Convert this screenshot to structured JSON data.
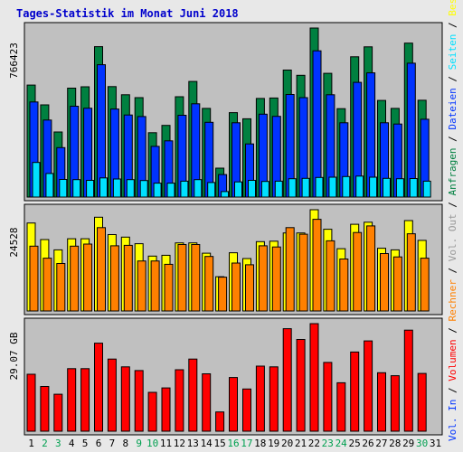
{
  "chart_data": {
    "type": "bar",
    "title": "Tages-Statistik im Monat Juni 2018",
    "categories": [
      "1",
      "2",
      "3",
      "4",
      "5",
      "6",
      "7",
      "8",
      "9",
      "10",
      "11",
      "12",
      "13",
      "14",
      "15",
      "16",
      "17",
      "18",
      "19",
      "20",
      "21",
      "22",
      "23",
      "24",
      "25",
      "26",
      "27",
      "28",
      "29",
      "30",
      "31"
    ],
    "weekend_categories": [
      "2",
      "3",
      "9",
      "10",
      "16",
      "17",
      "23",
      "24",
      "30"
    ],
    "colors": {
      "anfragen": "#008040",
      "dateien": "#0033ff",
      "seiten": "#00e0ff",
      "besuche": "#ffff00",
      "rechner": "#ff8000",
      "volumen": "#ff0000",
      "out": "#999999",
      "weekday_label": "#000000",
      "weekend_label": "#00a050"
    },
    "panels": [
      {
        "id": "requests",
        "max_label": "766423",
        "ymax": 766423,
        "series": [
          {
            "key": "anfragen",
            "values": [
              508000,
              418000,
              295000,
              494000,
              500000,
              682000,
              501000,
              464000,
              451000,
              292000,
              325000,
              455000,
              524000,
              402000,
              131000,
              383000,
              355000,
              447000,
              449000,
              576000,
              552000,
              766423,
              561000,
              401000,
              636000,
              681000,
              438000,
              402000,
              698000,
              439000,
              0
            ]
          },
          {
            "key": "dateien",
            "values": [
              431000,
              349000,
              224000,
              412000,
              403000,
              600000,
              399000,
              372000,
              365000,
              230000,
              255000,
              371000,
              423000,
              339000,
              102000,
              337000,
              241000,
              376000,
              366000,
              465000,
              451000,
              663000,
              464000,
              337000,
              520000,
              563000,
              337000,
              331000,
              607000,
              353000,
              0
            ]
          },
          {
            "key": "seiten",
            "values": [
              157000,
              107000,
              80000,
              79000,
              76000,
              87000,
              82000,
              79000,
              75000,
              63000,
              63000,
              72000,
              79000,
              66000,
              25000,
              69000,
              76000,
              71000,
              72000,
              83000,
              85000,
              89000,
              90000,
              93000,
              95000,
              90000,
              85000,
              83000,
              84000,
              72000,
              0
            ]
          }
        ],
        "side_labels": [
          {
            "key": "anfragen",
            "text": "Anfragen"
          },
          {
            "key": "dateien",
            "text": "Dateien"
          },
          {
            "key": "seiten",
            "text": "Seiten"
          },
          {
            "key": "besuche",
            "text": "Besuche"
          }
        ]
      },
      {
        "id": "visits",
        "max_label": "24528",
        "ymax": 24528,
        "series": [
          {
            "key": "besuche",
            "values": [
              21300,
              17300,
              14800,
              17500,
              17500,
              22700,
              18500,
              17900,
              16300,
              13300,
              13500,
              16500,
              16500,
              14000,
              8300,
              14100,
              12700,
              16800,
              16900,
              18900,
              18900,
              24528,
              19800,
              15100,
              21000,
              21500,
              15200,
              14800,
              21900,
              17100,
              0
            ]
          },
          {
            "key": "rechner",
            "values": [
              15700,
              12800,
              11500,
              15700,
              16200,
              20200,
              15800,
              15900,
              12100,
              12100,
              11300,
              16100,
              16100,
              13200,
              8200,
              11600,
              11200,
              15800,
              15500,
              20200,
              18600,
              22200,
              17000,
              12600,
              19000,
              20600,
              13900,
              13100,
              18700,
              12800,
              0
            ]
          }
        ],
        "side_labels": [
          {
            "key": "rechner",
            "text": "Rechner"
          },
          {
            "key": "out",
            "text": "Vol. Out"
          }
        ]
      },
      {
        "id": "volume",
        "max_label": "29.07 GB",
        "ymax": 29.07,
        "series": [
          {
            "key": "volumen",
            "values": [
              15.4,
              12.1,
              10.0,
              16.9,
              16.9,
              23.8,
              19.5,
              17.4,
              16.4,
              10.5,
              11.7,
              16.6,
              19.5,
              15.5,
              5.2,
              14.5,
              11.4,
              17.6,
              17.4,
              27.7,
              24.8,
              29.07,
              18.6,
              13.1,
              21.4,
              24.4,
              15.8,
              15.0,
              27.3,
              15.6,
              0
            ]
          }
        ],
        "side_labels": [
          {
            "key": "dateien",
            "text": "Vol. In"
          },
          {
            "key": "volumen",
            "text": "Volumen"
          }
        ]
      }
    ]
  }
}
